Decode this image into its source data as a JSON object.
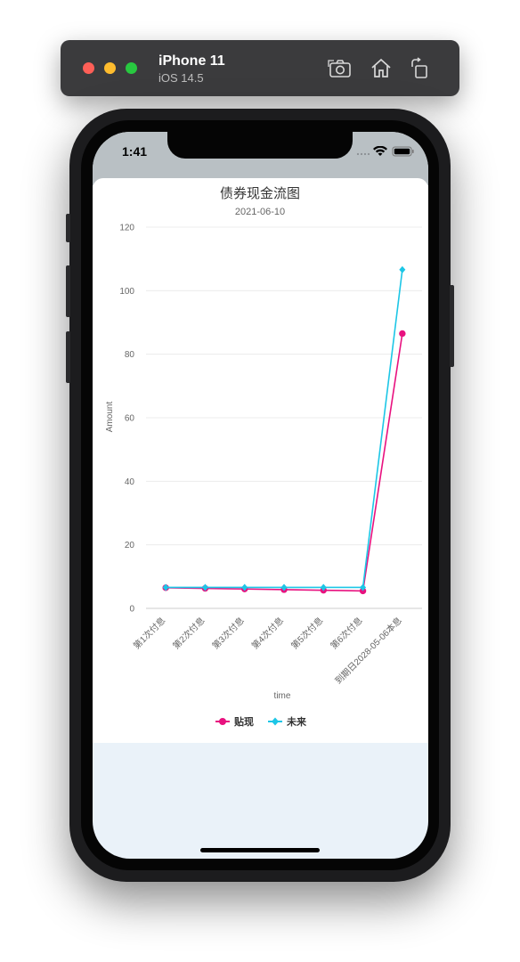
{
  "simulator": {
    "device_name": "iPhone 11",
    "os_version": "iOS 14.5",
    "toolbar_icons": [
      "screenshot-icon",
      "home-icon",
      "rotate-icon"
    ]
  },
  "status_bar": {
    "time": "1:41",
    "icons": [
      "signal-icon",
      "wifi-icon",
      "battery-icon"
    ]
  },
  "colors": {
    "series_1": "#e8117f",
    "series_2": "#1cc6e6",
    "page_background": "#eaf2f9"
  },
  "chart_data": {
    "type": "line",
    "title": "债券现金流图",
    "subtitle": "2021-06-10",
    "xlabel": "time",
    "ylabel": "Amount",
    "ylim": [
      0,
      120
    ],
    "yticks": [
      0,
      20,
      40,
      60,
      80,
      100,
      120
    ],
    "categories": [
      "第1次付息",
      "第2次付息",
      "第3次付息",
      "第4次付息",
      "第5次付息",
      "第6次付息",
      "到期日2028-05-06本息"
    ],
    "series": [
      {
        "name": "贴现",
        "marker": "circle",
        "values": [
          6.5,
          6.3,
          6.1,
          5.9,
          5.7,
          5.5,
          86.5
        ]
      },
      {
        "name": "未来",
        "marker": "diamond",
        "values": [
          6.6,
          6.6,
          6.6,
          6.6,
          6.6,
          6.6,
          106.6
        ]
      }
    ],
    "grid": true,
    "legend_position": "bottom"
  }
}
